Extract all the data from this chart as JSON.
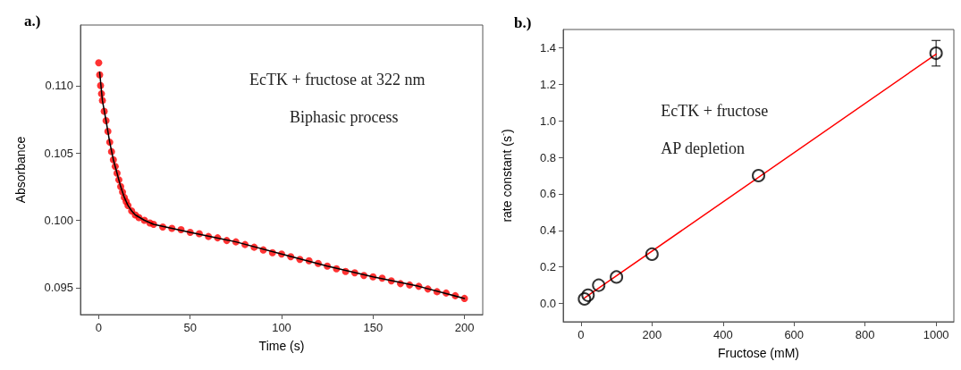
{
  "chart_data": [
    {
      "type": "scatter",
      "title": "a.)",
      "xlabel": "Time (s)",
      "ylabel": "Absorbance",
      "xlim": [
        -10,
        210
      ],
      "xticks": [
        0,
        50,
        100,
        150,
        200
      ],
      "ylim": [
        0.093,
        0.1145
      ],
      "yticks": [
        {
          "value": 0.095,
          "label": "0.095"
        },
        {
          "value": 0.1,
          "label": "0.100"
        },
        {
          "value": 0.105,
          "label": "0.105"
        },
        {
          "value": 0.11,
          "label": "0.110"
        }
      ],
      "grid": false,
      "annotations": [
        "EcTK + fructose at 322 nm",
        "Biphasic process"
      ],
      "series": [
        {
          "type": "scatter",
          "color": "#ff0000",
          "marker": "circle",
          "x": [
            0,
            0.5,
            1,
            1.5,
            2,
            3,
            4,
            5,
            6,
            7,
            8,
            9,
            10,
            11,
            12,
            13,
            14,
            15,
            16,
            18,
            20,
            22,
            25,
            28,
            30,
            35,
            40,
            45,
            50,
            55,
            60,
            65,
            70,
            75,
            80,
            85,
            90,
            95,
            100,
            105,
            110,
            115,
            120,
            125,
            130,
            135,
            140,
            145,
            150,
            155,
            160,
            165,
            170,
            175,
            180,
            185,
            190,
            195,
            200
          ],
          "values": [
            0.1117,
            0.1108,
            0.11,
            0.1094,
            0.1089,
            0.1081,
            0.1074,
            0.1066,
            0.1058,
            0.1051,
            0.1045,
            0.104,
            0.1035,
            0.103,
            0.1025,
            0.1021,
            0.1017,
            0.1014,
            0.1011,
            0.1007,
            0.1004,
            0.1002,
            0.1,
            0.0998,
            0.0997,
            0.0995,
            0.0994,
            0.0993,
            0.0991,
            0.099,
            0.0988,
            0.0987,
            0.0985,
            0.0984,
            0.0982,
            0.098,
            0.0978,
            0.0976,
            0.0975,
            0.0973,
            0.0971,
            0.097,
            0.0968,
            0.0966,
            0.0964,
            0.0962,
            0.0961,
            0.0959,
            0.0958,
            0.0957,
            0.0955,
            0.0953,
            0.0952,
            0.0951,
            0.0949,
            0.0947,
            0.0946,
            0.0944,
            0.0942
          ]
        },
        {
          "type": "line",
          "color": "#000000",
          "marker": "none",
          "x": [
            0.5,
            2,
            4,
            6,
            8,
            10,
            12,
            14,
            16,
            18,
            20,
            25,
            30,
            40,
            50,
            75,
            100,
            125,
            150,
            175,
            200
          ],
          "values": [
            0.111,
            0.1089,
            0.1074,
            0.1058,
            0.1045,
            0.1035,
            0.1025,
            0.1017,
            0.1011,
            0.1007,
            0.1004,
            0.1,
            0.0997,
            0.0994,
            0.0991,
            0.0984,
            0.0975,
            0.0966,
            0.0958,
            0.0951,
            0.0942
          ]
        }
      ]
    },
    {
      "type": "scatter",
      "title": "b.)",
      "xlabel": "Fructose (mM)",
      "ylabel": "rate constant (s$^{-}$)",
      "xlim": [
        -50,
        1050
      ],
      "xticks": [
        0,
        200,
        400,
        600,
        800,
        1000
      ],
      "ylim": [
        -0.1,
        1.5
      ],
      "yticks": [
        {
          "value": 0,
          "label": "0.0"
        },
        {
          "value": 0.2,
          "label": "0.2"
        },
        {
          "value": 0.4,
          "label": "0.4"
        },
        {
          "value": 0.6,
          "label": "0.6"
        },
        {
          "value": 0.8,
          "label": "0.8"
        },
        {
          "value": 1,
          "label": "1.0"
        },
        {
          "value": 1.2,
          "label": "1.2"
        },
        {
          "value": 1.4,
          "label": "1.4"
        }
      ],
      "grid": false,
      "annotations": [
        "EcTK + fructose",
        "AP depletion"
      ],
      "series": [
        {
          "type": "line",
          "color": "#ff0000",
          "marker": "none",
          "x": [
            10,
            1000
          ],
          "values": [
            0.03,
            1.365
          ]
        },
        {
          "type": "scatter",
          "color": "#000000",
          "marker": "circle",
          "x": [
            10,
            20,
            50,
            100,
            200,
            500,
            1000
          ],
          "values": [
            0.025,
            0.045,
            0.1,
            0.145,
            0.27,
            0.7,
            1.37
          ],
          "errors": [
            null,
            null,
            null,
            null,
            null,
            null,
            0.07
          ]
        }
      ]
    }
  ]
}
